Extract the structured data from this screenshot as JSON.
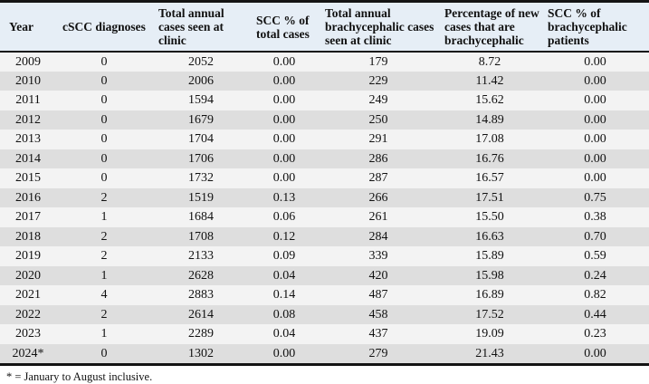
{
  "table": {
    "headers": [
      "Year",
      "cSCC diagnoses",
      "Total annual cases seen at clinic",
      "SCC % of total cases",
      "Total annual brachycephalic cases seen at clinic",
      "Percentage of new cases that are brachycephalic",
      "SCC % of brachycephalic patients"
    ],
    "rows": [
      [
        "2009",
        "0",
        "2052",
        "0.00",
        "179",
        "8.72",
        "0.00"
      ],
      [
        "2010",
        "0",
        "2006",
        "0.00",
        "229",
        "11.42",
        "0.00"
      ],
      [
        "2011",
        "0",
        "1594",
        "0.00",
        "249",
        "15.62",
        "0.00"
      ],
      [
        "2012",
        "0",
        "1679",
        "0.00",
        "250",
        "14.89",
        "0.00"
      ],
      [
        "2013",
        "0",
        "1704",
        "0.00",
        "291",
        "17.08",
        "0.00"
      ],
      [
        "2014",
        "0",
        "1706",
        "0.00",
        "286",
        "16.76",
        "0.00"
      ],
      [
        "2015",
        "0",
        "1732",
        "0.00",
        "287",
        "16.57",
        "0.00"
      ],
      [
        "2016",
        "2",
        "1519",
        "0.13",
        "266",
        "17.51",
        "0.75"
      ],
      [
        "2017",
        "1",
        "1684",
        "0.06",
        "261",
        "15.50",
        "0.38"
      ],
      [
        "2018",
        "2",
        "1708",
        "0.12",
        "284",
        "16.63",
        "0.70"
      ],
      [
        "2019",
        "2",
        "2133",
        "0.09",
        "339",
        "15.89",
        "0.59"
      ],
      [
        "2020",
        "1",
        "2628",
        "0.04",
        "420",
        "15.98",
        "0.24"
      ],
      [
        "2021",
        "4",
        "2883",
        "0.14",
        "487",
        "16.89",
        "0.82"
      ],
      [
        "2022",
        "2",
        "2614",
        "0.08",
        "458",
        "17.52",
        "0.44"
      ],
      [
        "2023",
        "1",
        "2289",
        "0.04",
        "437",
        "19.09",
        "0.23"
      ],
      [
        "2024*",
        "0",
        "1302",
        "0.00",
        "279",
        "21.43",
        "0.00"
      ]
    ]
  },
  "footnote": "* = January to August inclusive.",
  "colors": {
    "header_bg": "#e6eef6",
    "row_odd": "#f3f3f3",
    "row_even": "#dedede",
    "border": "#141414"
  }
}
